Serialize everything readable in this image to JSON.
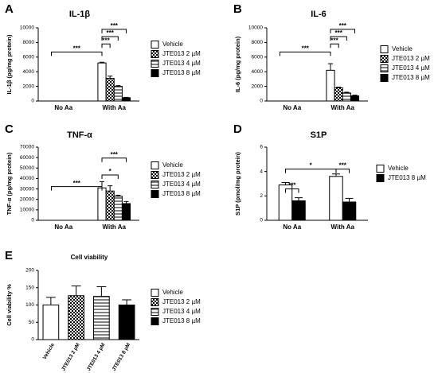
{
  "chart_data": [
    {
      "type": "grouped-bar",
      "panel": "A",
      "title": "IL-1β",
      "ylabel": "IL-1β (pg/mg protein)",
      "categories": [
        "No Aa",
        "With Aa"
      ],
      "series": [
        {
          "name": "Vehicle",
          "color": "#ffffff",
          "pattern": "solid",
          "values": [
            0,
            5200
          ],
          "errors": [
            0,
            100
          ]
        },
        {
          "name": "JTE013 2 µM",
          "color": "#000000",
          "pattern": "checker",
          "values": [
            0,
            3100
          ],
          "errors": [
            0,
            300
          ]
        },
        {
          "name": "JTE013 4 µM",
          "color": "#808080",
          "pattern": "hlines",
          "values": [
            0,
            2000
          ],
          "errors": [
            0,
            100
          ]
        },
        {
          "name": "JTE013 8 µM",
          "color": "#000000",
          "pattern": "solid",
          "values": [
            0,
            450
          ],
          "errors": [
            0,
            50
          ]
        }
      ],
      "ylim": [
        0,
        10000
      ],
      "yticks": [
        0,
        2000,
        4000,
        6000,
        8000,
        10000
      ],
      "annotations": [
        "***",
        "***",
        "***",
        "***"
      ]
    },
    {
      "type": "grouped-bar",
      "panel": "B",
      "title": "IL-6",
      "ylabel": "IL-6 (pg/mg protein)",
      "categories": [
        "No Aa",
        "With Aa"
      ],
      "series": [
        {
          "name": "Vehicle",
          "color": "#ffffff",
          "pattern": "solid",
          "values": [
            0,
            4200
          ],
          "errors": [
            0,
            900
          ]
        },
        {
          "name": "JTE013 2 µM",
          "color": "#000000",
          "pattern": "checker",
          "values": [
            0,
            1800
          ],
          "errors": [
            0,
            100
          ]
        },
        {
          "name": "JTE013 4 µM",
          "color": "#808080",
          "pattern": "hlines",
          "values": [
            0,
            1100
          ],
          "errors": [
            0,
            100
          ]
        },
        {
          "name": "JTE013 8 µM",
          "color": "#000000",
          "pattern": "solid",
          "values": [
            0,
            700
          ],
          "errors": [
            0,
            100
          ]
        }
      ],
      "ylim": [
        0,
        10000
      ],
      "yticks": [
        0,
        2000,
        4000,
        6000,
        8000,
        10000
      ],
      "annotations": [
        "***",
        "***",
        "***",
        "***"
      ]
    },
    {
      "type": "grouped-bar",
      "panel": "C",
      "title": "TNF-α",
      "ylabel": "TNF-α (pg/mg protein)",
      "categories": [
        "No Aa",
        "With Aa"
      ],
      "series": [
        {
          "name": "Vehicle",
          "color": "#ffffff",
          "pattern": "solid",
          "values": [
            0,
            31000
          ],
          "errors": [
            0,
            6000
          ]
        },
        {
          "name": "JTE013 2 µM",
          "color": "#000000",
          "pattern": "checker",
          "values": [
            0,
            28000
          ],
          "errors": [
            0,
            5000
          ]
        },
        {
          "name": "JTE013 4 µM",
          "color": "#808080",
          "pattern": "hlines",
          "values": [
            0,
            23000
          ],
          "errors": [
            0,
            1000
          ]
        },
        {
          "name": "JTE013 8 µM",
          "color": "#000000",
          "pattern": "solid",
          "values": [
            0,
            16000
          ],
          "errors": [
            0,
            2000
          ]
        }
      ],
      "ylim": [
        0,
        70000
      ],
      "yticks": [
        0,
        10000,
        20000,
        30000,
        40000,
        50000,
        60000,
        70000
      ],
      "annotations": [
        "***",
        "*",
        "***"
      ]
    },
    {
      "type": "grouped-bar",
      "panel": "D",
      "title": "S1P",
      "ylabel": "S1P (pmol/mg protein)",
      "categories": [
        "No Aa",
        "With Aa"
      ],
      "series": [
        {
          "name": "Vehicle",
          "color": "#ffffff",
          "pattern": "solid",
          "values": [
            2.9,
            3.6
          ],
          "errors": [
            0.2,
            0.2
          ]
        },
        {
          "name": "JTE013 8 µM",
          "color": "#000000",
          "pattern": "solid",
          "values": [
            1.6,
            1.5
          ],
          "errors": [
            0.25,
            0.3
          ]
        }
      ],
      "ylim": [
        0,
        6
      ],
      "yticks": [
        0,
        2,
        4,
        6
      ],
      "annotations": [
        "***",
        "*",
        "***"
      ]
    },
    {
      "type": "bar",
      "panel": "E",
      "title": "Cell viability",
      "ylabel": "Cell viability %",
      "categories": [
        "Vehicle",
        "JTE013 2 µM",
        "JTE013 4 µM",
        "JTE013 8 µM"
      ],
      "values": [
        100,
        127,
        125,
        100
      ],
      "errors": [
        22,
        28,
        28,
        15
      ],
      "colors": [
        "#ffffff",
        "#000000",
        "#808080",
        "#000000"
      ],
      "patterns": [
        "solid",
        "checker",
        "hlines",
        "solid"
      ],
      "ylim": [
        0,
        200
      ],
      "yticks": [
        0,
        50,
        100,
        150,
        200
      ]
    }
  ]
}
